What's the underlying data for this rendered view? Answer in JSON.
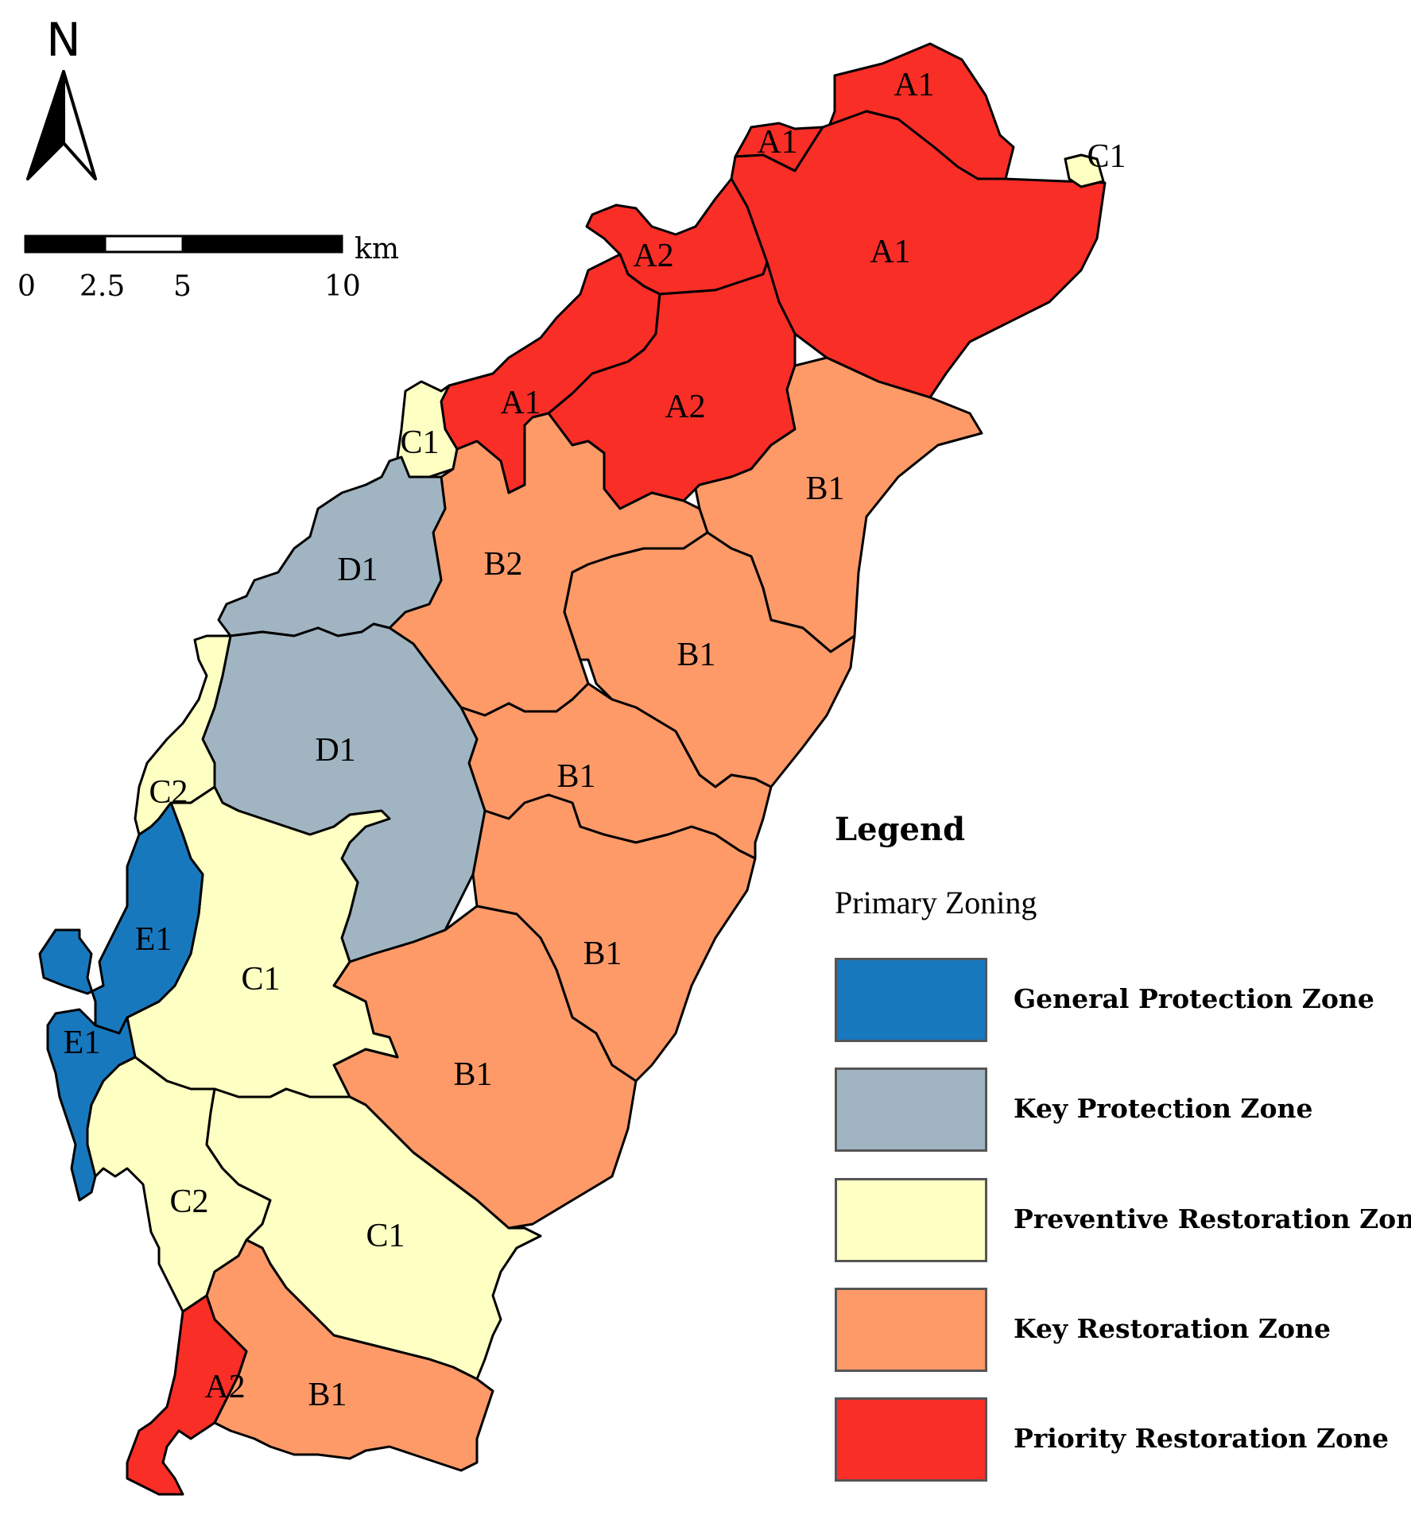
{
  "north_arrow": {
    "label": "N"
  },
  "scale_bar": {
    "unit": "km",
    "ticks": [
      "0",
      "2.5",
      "5",
      "10"
    ]
  },
  "legend": {
    "title": "Legend",
    "subtitle": "Primary Zoning",
    "items": [
      {
        "label": "General Protection Zone",
        "color": "#1878be"
      },
      {
        "label": "Key Protection Zone",
        "color": "#a0b5c1"
      },
      {
        "label": "Preventive Restoration Zone",
        "color": "#feffc2"
      },
      {
        "label": "Key Restoration Zone",
        "color": "#fe9a68"
      },
      {
        "label": "Priority Restoration Zone",
        "color": "#f92e27"
      }
    ]
  },
  "zones": [
    {
      "code": "A1",
      "category": "Priority Restoration Zone"
    },
    {
      "code": "A1",
      "category": "Priority Restoration Zone"
    },
    {
      "code": "A1",
      "category": "Priority Restoration Zone"
    },
    {
      "code": "A2",
      "category": "Priority Restoration Zone"
    },
    {
      "code": "A1",
      "category": "Priority Restoration Zone"
    },
    {
      "code": "A2",
      "category": "Priority Restoration Zone"
    },
    {
      "code": "C1",
      "category": "Preventive Restoration Zone"
    },
    {
      "code": "C1",
      "category": "Preventive Restoration Zone"
    },
    {
      "code": "B1",
      "category": "Key Restoration Zone"
    },
    {
      "code": "B2",
      "category": "Key Restoration Zone"
    },
    {
      "code": "B1",
      "category": "Key Restoration Zone"
    },
    {
      "code": "B1",
      "category": "Key Restoration Zone"
    },
    {
      "code": "B1",
      "category": "Key Restoration Zone"
    },
    {
      "code": "B1",
      "category": "Key Restoration Zone"
    },
    {
      "code": "D1",
      "category": "Key Protection Zone"
    },
    {
      "code": "D1",
      "category": "Key Protection Zone"
    },
    {
      "code": "C2",
      "category": "Preventive Restoration Zone"
    },
    {
      "code": "C1",
      "category": "Preventive Restoration Zone"
    },
    {
      "code": "E1",
      "category": "General Protection Zone"
    },
    {
      "code": "E1",
      "category": "General Protection Zone"
    },
    {
      "code": "C2",
      "category": "Preventive Restoration Zone"
    },
    {
      "code": "C1",
      "category": "Preventive Restoration Zone"
    },
    {
      "code": "B1",
      "category": "Key Restoration Zone"
    },
    {
      "code": "A2",
      "category": "Priority Restoration Zone"
    }
  ]
}
